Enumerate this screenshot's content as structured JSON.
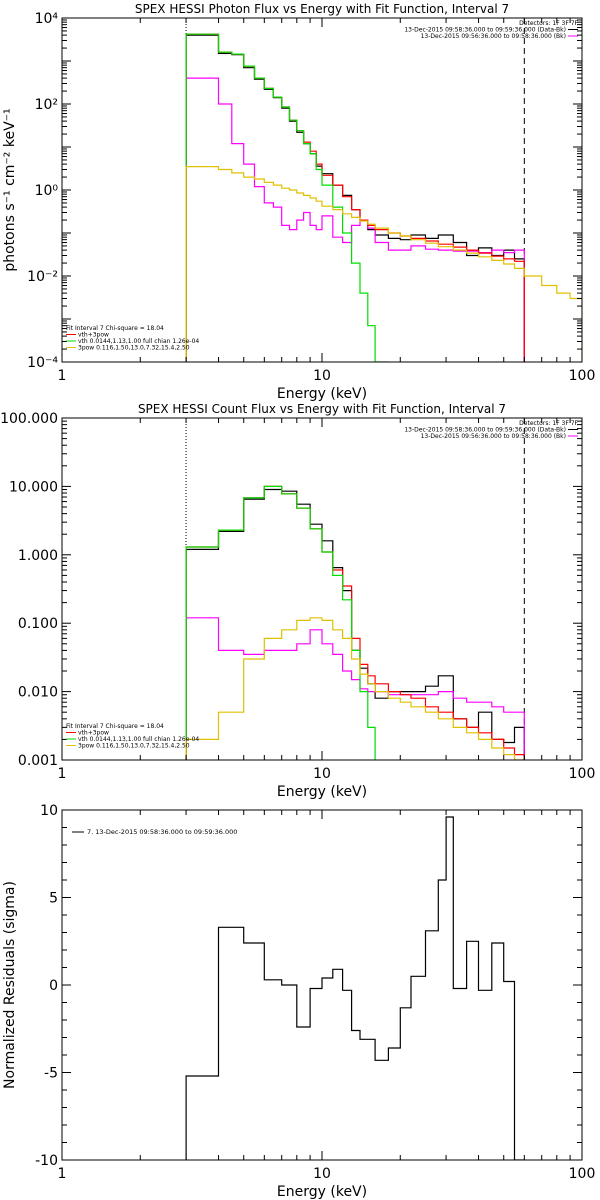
{
  "chart_data": [
    {
      "id": "photon",
      "type": "line",
      "title": "SPEX HESSI Photon Flux vs Energy with Fit Function, Interval 7",
      "xlabel": "Energy (keV)",
      "ylabel": "photons s⁻¹ cm⁻² keV⁻¹",
      "xscale": "log",
      "yscale": "log",
      "xlim": [
        1,
        100
      ],
      "ylim": [
        0.0001,
        10000
      ],
      "xticks": [
        {
          "v": 1,
          "label": "1"
        },
        {
          "v": 10,
          "label": "10"
        },
        {
          "v": 100,
          "label": "100"
        }
      ],
      "yticks": [
        {
          "v": 0.0001,
          "label": "10⁻⁴"
        },
        {
          "v": 0.01,
          "label": "10⁻²"
        },
        {
          "v": 1,
          "label": "10⁰"
        },
        {
          "v": 100,
          "label": "10²"
        },
        {
          "v": 10000,
          "label": "10⁴"
        }
      ],
      "vlines": [
        {
          "x": 3.0,
          "style": "dotted"
        },
        {
          "x": 60,
          "style": "dashed"
        }
      ],
      "legend_top_right": [
        "Detectors: 1F 3F 7F",
        "13-Dec-2015 09:58:36.000 to 09:59:36.000 (Data-Bk)",
        "13-Dec-2015 09:56:36.000 to 09:58:36.000 (Bk)"
      ],
      "legend_bottom_left": [
        "Fit Interval 7    Chi-square = 18.04",
        "vth+3pow",
        "vth 0.0144,1.13,1.00  full chian 1.26e-04",
        "3pow 0.116,1.50,13.0,7.32,15.4,2.50"
      ],
      "edges": [
        3.0,
        3.5,
        4.0,
        4.5,
        5.0,
        5.5,
        6.0,
        6.5,
        7.0,
        7.5,
        8.0,
        8.5,
        9.0,
        9.5,
        10.0,
        11.0,
        12.0,
        13.0,
        14.0,
        15.0,
        16.0,
        18.0,
        20.0,
        22.0,
        25.0,
        28.0,
        32.0,
        36.0,
        40.0,
        45.0,
        50.0,
        55.0,
        60.0,
        70.0,
        80.0,
        90.0,
        100.0
      ],
      "series": [
        {
          "name": "Data-Bk",
          "color": "#000000",
          "nbins": 32,
          "values": [
            4000,
            4000,
            1500,
            1400,
            700,
            380,
            220,
            140,
            80,
            40,
            22,
            12,
            7,
            3.6,
            2.4,
            1.3,
            0.75,
            0.35,
            0.2,
            0.12,
            0.09,
            0.075,
            0.07,
            0.09,
            0.075,
            0.09,
            0.06,
            0.03,
            0.045,
            0.03,
            0.04,
            0.025
          ]
        },
        {
          "name": "Bk",
          "color": "#ff00ff",
          "nbins": 32,
          "values": [
            400,
            400,
            100,
            12,
            4,
            1.2,
            0.5,
            0.4,
            0.15,
            0.12,
            0.2,
            0.3,
            0.15,
            0.12,
            0.25,
            0.08,
            0.06,
            0.15,
            0.2,
            0.13,
            0.06,
            0.04,
            0.04,
            0.05,
            0.042,
            0.04,
            0.038,
            0.038,
            0.035,
            0.04,
            0.035,
            0.04
          ]
        },
        {
          "name": "vth+3pow",
          "color": "#ff0000",
          "nbins": 32,
          "values": [
            4200,
            4200,
            1600,
            1450,
            760,
            400,
            230,
            145,
            85,
            42,
            24,
            13,
            8,
            4,
            2.2,
            1.3,
            0.7,
            0.35,
            0.2,
            0.15,
            0.12,
            0.1,
            0.085,
            0.075,
            0.065,
            0.055,
            0.047,
            0.04,
            0.034,
            0.029,
            0.025,
            0.022
          ]
        },
        {
          "name": "vth",
          "color": "#00dd00",
          "nbins": 25,
          "values": [
            4200,
            4200,
            1600,
            1450,
            760,
            400,
            230,
            145,
            85,
            42,
            24,
            12,
            7,
            3,
            1.3,
            0.4,
            0.1,
            0.02,
            0.004,
            0.0007,
            0.0001,
            5e-05,
            5e-05,
            5e-05,
            5e-05
          ]
        },
        {
          "name": "3pow",
          "color": "#e0c000",
          "nbins": 36,
          "values": [
            3.5,
            3.5,
            3.0,
            2.5,
            2.0,
            1.8,
            1.5,
            1.3,
            1.1,
            1.0,
            0.85,
            0.75,
            0.65,
            0.55,
            0.42,
            0.35,
            0.28,
            0.23,
            0.19,
            0.16,
            0.13,
            0.1,
            0.085,
            0.07,
            0.058,
            0.048,
            0.04,
            0.034,
            0.028,
            0.023,
            0.019,
            0.015,
            0.01,
            0.006,
            0.004,
            0.003
          ]
        }
      ]
    },
    {
      "id": "count",
      "type": "line",
      "title": "SPEX HESSI Count Flux vs Energy with Fit Function, Interval 7",
      "xlabel": "Energy (keV)",
      "ylabel": "",
      "xscale": "log",
      "yscale": "log",
      "xlim": [
        1,
        100
      ],
      "ylim": [
        0.001,
        100
      ],
      "xticks": [
        {
          "v": 1,
          "label": "1"
        },
        {
          "v": 10,
          "label": "10"
        },
        {
          "v": 100,
          "label": "100"
        }
      ],
      "yticks": [
        {
          "v": 0.001,
          "label": "0.001"
        },
        {
          "v": 0.01,
          "label": "0.010"
        },
        {
          "v": 0.1,
          "label": "0.100"
        },
        {
          "v": 1,
          "label": "1.000"
        },
        {
          "v": 10,
          "label": "10.000"
        },
        {
          "v": 100,
          "label": "100.000"
        }
      ],
      "vlines": [
        {
          "x": 3.0,
          "style": "dotted"
        },
        {
          "x": 60,
          "style": "dashed"
        }
      ],
      "legend_top_right": [
        "Detectors: 1F 3F 7F",
        "13-Dec-2015 09:58:36.000 to 09:59:36.000 (Data-Bk)",
        "13-Dec-2015 09:56:36.000 to 09:58:36.000 (Bk)"
      ],
      "legend_bottom_left": [
        "Fit Interval 7    Chi-square = 18.04",
        "vth+3pow",
        "vth 0.0144,1.13,1.00  full chian 1.26e-04",
        "3pow 0.116,1.50,13.0,7.32,15.4,2.50"
      ],
      "edges": [
        3.0,
        4.0,
        5.0,
        6.0,
        7.0,
        8.0,
        9.0,
        10.0,
        11.0,
        12.0,
        13.0,
        14.0,
        15.0,
        16.0,
        18.0,
        20.0,
        22.0,
        25.0,
        28.0,
        32.0,
        36.0,
        40.0,
        45.0,
        50.0,
        55.0,
        60.0,
        65.0,
        70.0,
        75.0
      ],
      "series": [
        {
          "name": "Data-Bk",
          "color": "#000000",
          "nbins": 25,
          "values": [
            1.2,
            2.2,
            6.5,
            9.0,
            8.5,
            5.5,
            2.8,
            1.6,
            0.65,
            0.3,
            0.04,
            0.022,
            0.013,
            0.008,
            0.01,
            0.01,
            0.01,
            0.012,
            0.017,
            0.004,
            0.003,
            0.005,
            0.002,
            0.0018,
            0.003
          ]
        },
        {
          "name": "Bk",
          "color": "#ff00ff",
          "nbins": 25,
          "values": [
            0.12,
            0.04,
            0.035,
            0.04,
            0.04,
            0.05,
            0.08,
            0.05,
            0.035,
            0.02,
            0.015,
            0.011,
            0.01,
            0.01,
            0.009,
            0.009,
            0.009,
            0.009,
            0.01,
            0.008,
            0.007,
            0.007,
            0.006,
            0.005,
            0.005
          ]
        },
        {
          "name": "vth+3pow",
          "color": "#ff0000",
          "nbins": 28,
          "values": [
            1.3,
            2.3,
            6.8,
            10.0,
            7.8,
            4.8,
            2.4,
            1.1,
            0.6,
            0.35,
            0.06,
            0.025,
            0.017,
            0.013,
            0.01,
            0.009,
            0.008,
            0.006,
            0.005,
            0.004,
            0.003,
            0.0025,
            0.002,
            0.0015,
            0.0012,
            0.0008,
            0.0006,
            0.0005
          ]
        },
        {
          "name": "vth",
          "color": "#00dd00",
          "nbins": 15,
          "values": [
            1.3,
            2.3,
            6.8,
            10.0,
            7.8,
            4.8,
            2.4,
            1.1,
            0.5,
            0.22,
            0.04,
            0.01,
            0.003,
            0.0005,
            0.0005
          ]
        },
        {
          "name": "3pow",
          "color": "#e0c000",
          "nbins": 28,
          "values": [
            0.002,
            0.005,
            0.03,
            0.06,
            0.08,
            0.11,
            0.12,
            0.11,
            0.08,
            0.06,
            0.03,
            0.018,
            0.013,
            0.01,
            0.008,
            0.007,
            0.006,
            0.005,
            0.004,
            0.003,
            0.0025,
            0.002,
            0.0015,
            0.0012,
            0.001,
            0.0007,
            0.0005,
            0.0005
          ]
        }
      ]
    },
    {
      "id": "residuals",
      "type": "line",
      "title": "",
      "xlabel": "Energy (keV)",
      "ylabel": "Normalized Residuals (sigma)",
      "xscale": "log",
      "yscale": "linear",
      "xlim": [
        1,
        100
      ],
      "ylim": [
        -10,
        10
      ],
      "xticks": [
        {
          "v": 1,
          "label": "1"
        },
        {
          "v": 10,
          "label": "10"
        },
        {
          "v": 100,
          "label": "100"
        }
      ],
      "yticks": [
        {
          "v": -10,
          "label": "-10"
        },
        {
          "v": -5,
          "label": "-5"
        },
        {
          "v": 0,
          "label": "0"
        },
        {
          "v": 5,
          "label": "5"
        },
        {
          "v": 10,
          "label": "10"
        }
      ],
      "vlines": [],
      "legend_top_right": [],
      "legend_bottom_left": [],
      "legend_top_left": [
        "7. 13-Dec-2015 09:58:36.000 to 09:59:36.000"
      ],
      "edges": [
        3.0,
        4.0,
        5.0,
        6.0,
        7.0,
        8.0,
        9.0,
        10.0,
        11.0,
        12.0,
        13.0,
        14.0,
        16.0,
        18.0,
        20.0,
        22.0,
        25.0,
        28.0,
        30.0,
        32.0,
        36.0,
        40.0,
        45.0,
        50.0,
        55.0,
        60.0
      ],
      "series": [
        {
          "name": "residuals",
          "color": "#000000",
          "nbins": 25,
          "values": [
            -5.2,
            3.3,
            2.4,
            0.3,
            0.0,
            -2.4,
            -0.2,
            0.4,
            0.9,
            -0.3,
            -2.6,
            -3.1,
            -4.3,
            -3.6,
            -1.3,
            0.5,
            3.1,
            6.0,
            9.6,
            -0.2,
            2.5,
            -0.3,
            2.4,
            0.2,
            -10
          ]
        }
      ]
    }
  ]
}
